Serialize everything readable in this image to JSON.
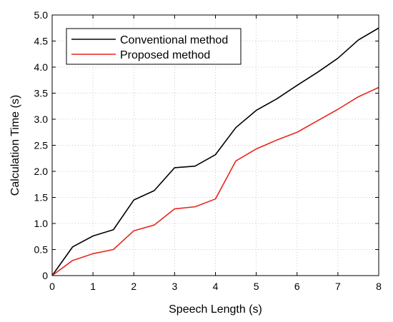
{
  "chart_data": {
    "type": "line",
    "title": "",
    "xlabel": "Speech Length (s)",
    "ylabel": "Calculation Time (s)",
    "xlim": [
      0,
      8
    ],
    "ylim": [
      0,
      5
    ],
    "x_ticks": [
      "0",
      "1",
      "2",
      "3",
      "4",
      "5",
      "6",
      "7",
      "8"
    ],
    "y_ticks": [
      "0",
      "0.5",
      "1.0",
      "1.5",
      "2.0",
      "2.5",
      "3.0",
      "3.5",
      "4.0",
      "4.5",
      "5.0"
    ],
    "grid": true,
    "legend_position": "top-left",
    "x": [
      0,
      0.5,
      1,
      1.5,
      2,
      2.5,
      3,
      3.5,
      4,
      4.5,
      5,
      5.5,
      6,
      6.5,
      7,
      7.5,
      8
    ],
    "series": [
      {
        "name": "Conventional method",
        "color": "#000000",
        "values": [
          0,
          0.55,
          0.76,
          0.88,
          1.45,
          1.63,
          2.07,
          2.1,
          2.32,
          2.84,
          3.17,
          3.39,
          3.65,
          3.9,
          4.17,
          4.52,
          4.75
        ]
      },
      {
        "name": "Proposed method",
        "color": "#e8261c",
        "values": [
          0,
          0.29,
          0.42,
          0.5,
          0.86,
          0.97,
          1.28,
          1.32,
          1.47,
          2.2,
          2.43,
          2.6,
          2.75,
          2.97,
          3.19,
          3.43,
          3.61
        ]
      }
    ]
  }
}
